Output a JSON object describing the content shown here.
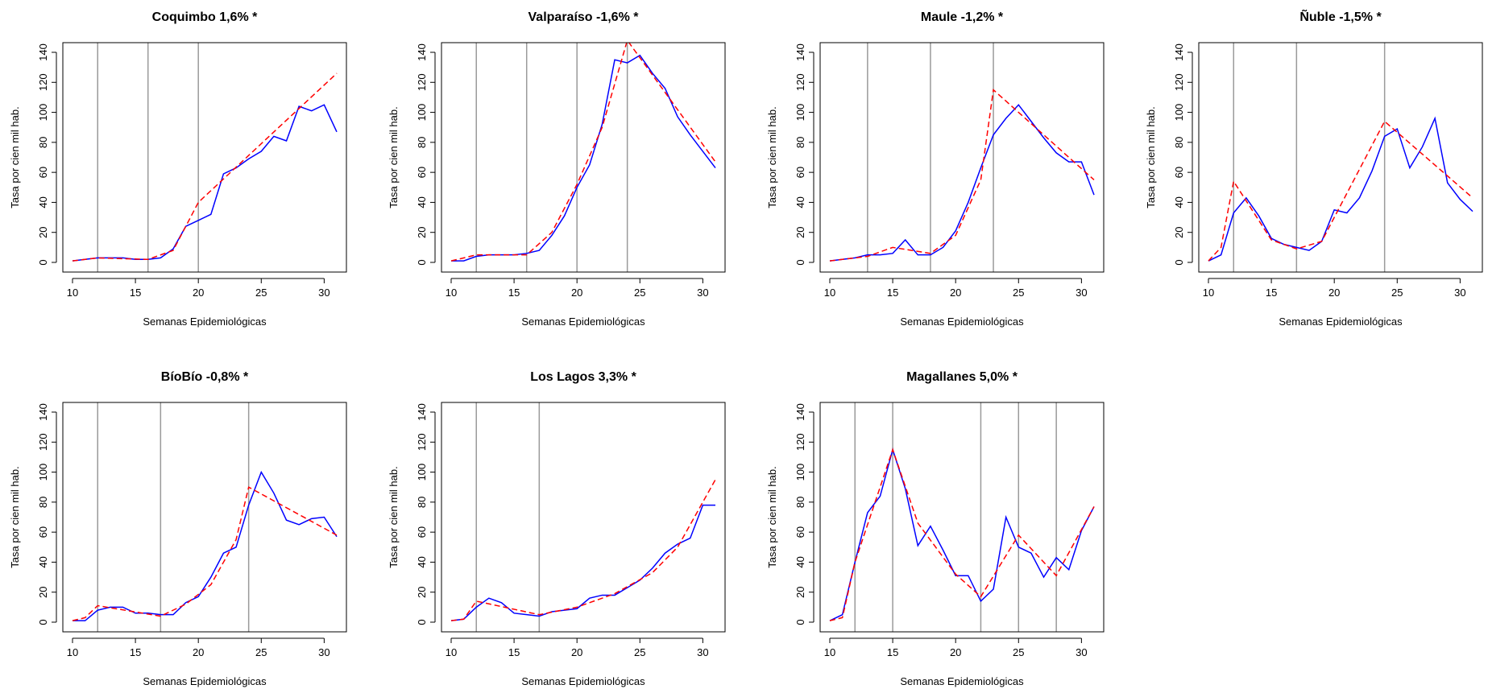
{
  "chart_data": [
    {
      "type": "line",
      "title": "Coquimbo 1,6% *",
      "xlabel": "Semanas Epidemiológicas",
      "ylabel": "Tasa por cien mil hab.",
      "xlim": [
        10,
        31
      ],
      "ylim": [
        0,
        140
      ],
      "xticks": [
        10,
        15,
        20,
        25,
        30
      ],
      "yticks": [
        0,
        20,
        40,
        60,
        80,
        100,
        120,
        140
      ],
      "vlines": [
        12,
        16,
        20
      ],
      "x": [
        10,
        11,
        12,
        13,
        14,
        15,
        16,
        17,
        18,
        19,
        20,
        21,
        22,
        23,
        24,
        25,
        26,
        27,
        28,
        29,
        30,
        31
      ],
      "series": [
        {
          "style": "solid",
          "color": "#0000ff",
          "values": [
            1,
            2,
            3,
            3,
            3,
            2,
            2,
            3,
            9,
            24,
            28,
            32,
            59,
            63,
            69,
            74,
            84,
            81,
            104,
            101,
            105,
            87
          ]
        },
        {
          "style": "dashed",
          "color": "#ff0000",
          "x": [
            10,
            12,
            16,
            18,
            20,
            31
          ],
          "values": [
            1,
            3,
            2,
            8,
            40,
            126
          ]
        }
      ]
    },
    {
      "type": "line",
      "title": "Valparaíso -1,6% *",
      "xlabel": "Semanas Epidemiológicas",
      "ylabel": "Tasa por cien mil hab.",
      "xlim": [
        10,
        31
      ],
      "ylim": [
        0,
        140
      ],
      "xticks": [
        10,
        15,
        20,
        25,
        30
      ],
      "yticks": [
        0,
        20,
        40,
        60,
        80,
        100,
        120,
        140
      ],
      "vlines": [
        12,
        16,
        20,
        24
      ],
      "x": [
        10,
        11,
        12,
        13,
        14,
        15,
        16,
        17,
        18,
        19,
        20,
        21,
        22,
        23,
        24,
        25,
        26,
        27,
        28,
        29,
        30,
        31
      ],
      "series": [
        {
          "style": "solid",
          "color": "#0000ff",
          "values": [
            1,
            1,
            4,
            5,
            5,
            5,
            6,
            8,
            18,
            31,
            50,
            65,
            92,
            135,
            133,
            138,
            126,
            116,
            97,
            85,
            74,
            63
          ]
        },
        {
          "style": "dashed",
          "color": "#ff0000",
          "x": [
            10,
            12,
            16,
            18,
            20,
            22,
            24,
            31
          ],
          "values": [
            1,
            5,
            5,
            20,
            52,
            90,
            148,
            67
          ]
        }
      ]
    },
    {
      "type": "line",
      "title": "Maule -1,2% *",
      "xlabel": "Semanas Epidemiológicas",
      "ylabel": "Tasa por cien mil hab.",
      "xlim": [
        10,
        31
      ],
      "ylim": [
        0,
        140
      ],
      "xticks": [
        10,
        15,
        20,
        25,
        30
      ],
      "yticks": [
        0,
        20,
        40,
        60,
        80,
        100,
        120,
        140
      ],
      "vlines": [
        13,
        18,
        23
      ],
      "x": [
        10,
        11,
        12,
        13,
        14,
        15,
        16,
        17,
        18,
        19,
        20,
        21,
        22,
        23,
        24,
        25,
        26,
        27,
        28,
        29,
        30,
        31
      ],
      "series": [
        {
          "style": "solid",
          "color": "#0000ff",
          "values": [
            1,
            2,
            3,
            5,
            5,
            6,
            15,
            5,
            5,
            10,
            21,
            40,
            63,
            85,
            96,
            105,
            94,
            83,
            73,
            67,
            67,
            45
          ]
        },
        {
          "style": "dashed",
          "color": "#ff0000",
          "x": [
            10,
            13,
            15,
            18,
            20,
            22,
            23,
            31
          ],
          "values": [
            1,
            4,
            10,
            6,
            18,
            55,
            115,
            55
          ]
        }
      ]
    },
    {
      "type": "line",
      "title": "Ñuble -1,5% *",
      "xlabel": "Semanas Epidemiológicas",
      "ylabel": "Tasa por cien mil hab.",
      "xlim": [
        10,
        31
      ],
      "ylim": [
        0,
        140
      ],
      "xticks": [
        10,
        15,
        20,
        25,
        30
      ],
      "yticks": [
        0,
        20,
        40,
        60,
        80,
        100,
        120,
        140
      ],
      "vlines": [
        12,
        17,
        24
      ],
      "x": [
        10,
        11,
        12,
        13,
        14,
        15,
        16,
        17,
        18,
        19,
        20,
        21,
        22,
        23,
        24,
        25,
        26,
        27,
        28,
        29,
        30,
        31
      ],
      "series": [
        {
          "style": "solid",
          "color": "#0000ff",
          "values": [
            1,
            5,
            33,
            43,
            31,
            16,
            12,
            10,
            8,
            14,
            35,
            33,
            43,
            61,
            84,
            89,
            63,
            77,
            96,
            53,
            42,
            34
          ]
        },
        {
          "style": "dashed",
          "color": "#ff0000",
          "x": [
            10,
            11,
            12,
            15,
            17,
            19,
            24,
            31
          ],
          "values": [
            1,
            10,
            54,
            15,
            9,
            14,
            94,
            43
          ]
        }
      ]
    },
    {
      "type": "line",
      "title": "BíoBío -0,8% *",
      "xlabel": "Semanas Epidemiológicas",
      "ylabel": "Tasa por cien mil hab.",
      "xlim": [
        10,
        31
      ],
      "ylim": [
        0,
        140
      ],
      "xticks": [
        10,
        15,
        20,
        25,
        30
      ],
      "yticks": [
        0,
        20,
        40,
        60,
        80,
        100,
        120,
        140
      ],
      "vlines": [
        12,
        17,
        24
      ],
      "x": [
        10,
        11,
        12,
        13,
        14,
        15,
        16,
        17,
        18,
        19,
        20,
        21,
        22,
        23,
        24,
        25,
        26,
        27,
        28,
        29,
        30,
        31
      ],
      "series": [
        {
          "style": "solid",
          "color": "#0000ff",
          "values": [
            1,
            1,
            8,
            10,
            10,
            6,
            6,
            5,
            5,
            13,
            17,
            30,
            46,
            50,
            78,
            100,
            86,
            68,
            65,
            69,
            70,
            57
          ]
        },
        {
          "style": "dashed",
          "color": "#ff0000",
          "x": [
            10,
            11,
            12,
            17,
            19,
            21,
            23,
            24,
            31
          ],
          "values": [
            1,
            3,
            11,
            4,
            12,
            25,
            55,
            90,
            58
          ]
        }
      ]
    },
    {
      "type": "line",
      "title": "Los Lagos 3,3% *",
      "xlabel": "Semanas Epidemiológicas",
      "ylabel": "Tasa por cien mil hab.",
      "xlim": [
        10,
        31
      ],
      "ylim": [
        0,
        140
      ],
      "xticks": [
        10,
        15,
        20,
        25,
        30
      ],
      "yticks": [
        0,
        20,
        40,
        60,
        80,
        100,
        120,
        140
      ],
      "vlines": [
        12,
        17
      ],
      "x": [
        10,
        11,
        12,
        13,
        14,
        15,
        16,
        17,
        18,
        19,
        20,
        21,
        22,
        23,
        24,
        25,
        26,
        27,
        28,
        29,
        30,
        31
      ],
      "series": [
        {
          "style": "solid",
          "color": "#0000ff",
          "values": [
            1,
            2,
            10,
            16,
            13,
            6,
            5,
            4,
            7,
            8,
            9,
            16,
            18,
            18,
            23,
            28,
            36,
            46,
            52,
            56,
            78,
            78
          ]
        },
        {
          "style": "dashed",
          "color": "#ff0000",
          "x": [
            10,
            11,
            12,
            17,
            20,
            23,
            26,
            28,
            31
          ],
          "values": [
            1,
            2,
            14,
            5,
            10,
            19,
            33,
            50,
            95
          ]
        }
      ]
    },
    {
      "type": "line",
      "title": "Magallanes 5,0% *",
      "xlabel": "Semanas Epidemiológicas",
      "ylabel": "Tasa por cien mil hab.",
      "xlim": [
        10,
        31
      ],
      "ylim": [
        0,
        140
      ],
      "xticks": [
        10,
        15,
        20,
        25,
        30
      ],
      "yticks": [
        0,
        20,
        40,
        60,
        80,
        100,
        120,
        140
      ],
      "vlines": [
        12,
        15,
        22,
        25,
        28
      ],
      "x": [
        10,
        11,
        12,
        13,
        14,
        15,
        16,
        17,
        18,
        19,
        20,
        21,
        22,
        23,
        24,
        25,
        26,
        27,
        28,
        29,
        30,
        31
      ],
      "series": [
        {
          "style": "solid",
          "color": "#0000ff",
          "values": [
            1,
            5,
            40,
            73,
            84,
            115,
            89,
            51,
            64,
            48,
            31,
            31,
            14,
            22,
            70,
            50,
            46,
            30,
            43,
            35,
            61,
            77
          ]
        },
        {
          "style": "dashed",
          "color": "#ff0000",
          "x": [
            10,
            11,
            12,
            15,
            17,
            20,
            22,
            25,
            28,
            31
          ],
          "values": [
            1,
            3,
            40,
            115,
            66,
            32,
            17,
            58,
            31,
            77
          ]
        }
      ]
    }
  ]
}
